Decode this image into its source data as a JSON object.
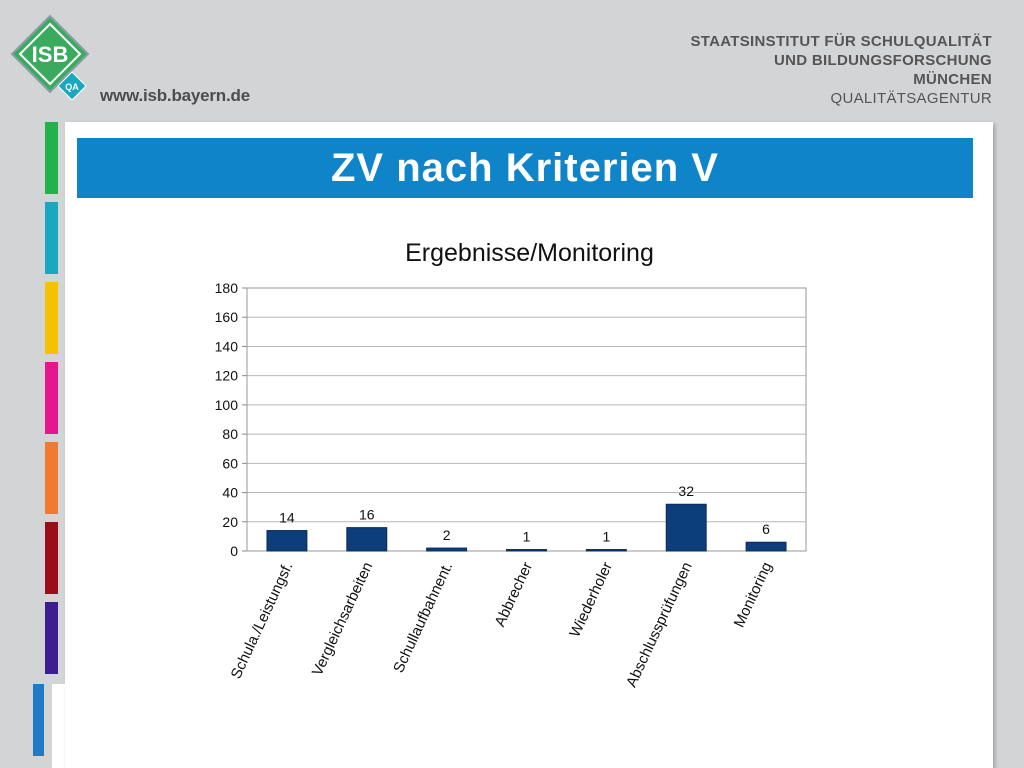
{
  "header": {
    "logo_text": "ISB",
    "logo_badge": "QA",
    "logo_url": "www.isb.bayern.de",
    "institute_lines": [
      "STAATSINSTITUT FÜR SCHULQUALITÄT",
      "UND BILDUNGSFORSCHUNG",
      "MÜNCHEN"
    ],
    "institute_sub": "QUALITÄTSAGENTUR"
  },
  "colors": {
    "title_bar": "#0f84c9",
    "bar_fill": "#0b3e7b",
    "strip": [
      "#22b24c",
      "#1aa7c0",
      "#f6c100",
      "#e6168c",
      "#f07a2f",
      "#9b0d18",
      "#3e1d8f"
    ],
    "strip_lower": "#1f7cc4"
  },
  "slide": {
    "title": "ZV nach Kriterien V"
  },
  "chart_data": {
    "type": "bar",
    "title": "Ergebnisse/Monitoring",
    "xlabel": "",
    "ylabel": "",
    "categories": [
      "Schula./Leistungsf.",
      "Vergleichsarbeiten",
      "Schullaufbahnent.",
      "Abbrecher",
      "Wiederholer",
      "Abschlussprüfungen",
      "Monitoring"
    ],
    "values": [
      14,
      16,
      2,
      1,
      1,
      32,
      6
    ],
    "ylim": [
      0,
      180
    ],
    "yticks": [
      0,
      20,
      40,
      60,
      80,
      100,
      120,
      140,
      160,
      180
    ],
    "grid": true,
    "legend": "none",
    "data_labels": true
  }
}
